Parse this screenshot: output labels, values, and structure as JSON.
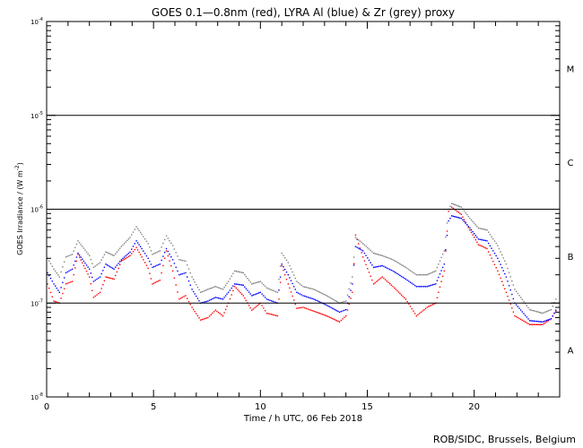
{
  "chart_data": {
    "type": "scatter",
    "title": "GOES 0.1—0.8nm (red), LYRA Al (blue) & Zr (grey) proxy",
    "xlabel": "Time / h UTC, 06 Feb 2018",
    "ylabel": "GOES Irradiance / (W m",
    "ylabel_sup": "-2",
    "ylabel_end": ")",
    "xlim": [
      0,
      24
    ],
    "ylim": [
      1e-08,
      0.0001
    ],
    "yscale": "log",
    "x_ticks": [
      {
        "v": 0,
        "label": "0"
      },
      {
        "v": 5,
        "label": "5"
      },
      {
        "v": 10,
        "label": "10"
      },
      {
        "v": 15,
        "label": "15"
      },
      {
        "v": 20,
        "label": "20"
      }
    ],
    "y_ticks": [
      {
        "exp": -8,
        "base": "10",
        "sup": "-8"
      },
      {
        "exp": -7,
        "base": "10",
        "sup": "-7"
      },
      {
        "exp": -6,
        "base": "10",
        "sup": "-6"
      },
      {
        "exp": -5,
        "base": "10",
        "sup": "-5"
      },
      {
        "exp": -4,
        "base": "10",
        "sup": "-4"
      }
    ],
    "reference_lines": [
      1e-07,
      1e-06,
      1e-05
    ],
    "class_labels": [
      {
        "label": "A",
        "exp": -7.5
      },
      {
        "label": "B",
        "exp": -6.5
      },
      {
        "label": "C",
        "exp": -5.5
      },
      {
        "label": "M",
        "exp": -4.5
      }
    ],
    "x": [
      0.04,
      0.34,
      0.6,
      0.9,
      1.2,
      1.47,
      2.0,
      2.2,
      2.5,
      2.77,
      3.15,
      3.5,
      3.9,
      4.2,
      4.45,
      4.75,
      4.95,
      5.3,
      5.6,
      5.9,
      6.2,
      6.5,
      6.8,
      7.2,
      7.55,
      7.9,
      8.25,
      8.5,
      8.8,
      9.2,
      9.6,
      10.0,
      10.3,
      10.8,
      11.0,
      11.3,
      11.7,
      12.0,
      12.5,
      13.1,
      13.7,
      14.0,
      14.3,
      14.45,
      14.8,
      15.3,
      15.7,
      16.2,
      16.8,
      17.3,
      17.8,
      18.2,
      18.6,
      18.8,
      18.95,
      19.4,
      19.8,
      20.2,
      20.6,
      21.1,
      21.5,
      21.9,
      22.6,
      23.2,
      23.6,
      23.9
    ],
    "series": [
      {
        "name": "GOES 0.1-0.8nm",
        "color": "#ff0000",
        "values": [
          1.6e-07,
          1.05e-07,
          1e-07,
          1.6e-07,
          1.7e-07,
          3.3e-07,
          1.9e-07,
          1.15e-07,
          1.3e-07,
          1.9e-07,
          1.8e-07,
          2.8e-07,
          3.2e-07,
          3.9e-07,
          3.1e-07,
          2.35e-07,
          1.6e-07,
          1.75e-07,
          3.6e-07,
          2.2e-07,
          1.1e-07,
          1.2e-07,
          9e-08,
          6.6e-08,
          7e-08,
          8.4e-08,
          7.3e-08,
          1e-07,
          1.5e-07,
          1.2e-07,
          8.4e-08,
          1e-07,
          7.8e-08,
          7.3e-08,
          2.5e-07,
          1.6e-07,
          8.8e-08,
          9e-08,
          8.2e-08,
          7.3e-08,
          6.3e-08,
          7.3e-08,
          1.3e-07,
          5.3e-07,
          3.1e-07,
          1.6e-07,
          1.9e-07,
          1.5e-07,
          1.1e-07,
          7.3e-08,
          9e-08,
          1e-07,
          2.2e-07,
          9.5e-07,
          1.05e-06,
          8.8e-07,
          6e-07,
          4.2e-07,
          3.8e-07,
          2.2e-07,
          1.3e-07,
          7.3e-08,
          5.9e-08,
          5.9e-08,
          6.8e-08,
          8.8e-08
        ]
      },
      {
        "name": "LYRA Al proxy",
        "color": "#0000ff",
        "values": [
          2.1e-07,
          1.6e-07,
          1.3e-07,
          2.1e-07,
          2.3e-07,
          3.4e-07,
          2.3e-07,
          1.7e-07,
          1.9e-07,
          2.6e-07,
          2.3e-07,
          2.9e-07,
          3.5e-07,
          4.6e-07,
          3.8e-07,
          3e-07,
          2.4e-07,
          2.6e-07,
          3.8e-07,
          2.9e-07,
          2e-07,
          2.1e-07,
          1.4e-07,
          1e-07,
          1.05e-07,
          1.15e-07,
          1.1e-07,
          1.3e-07,
          1.6e-07,
          1.55e-07,
          1.2e-07,
          1.3e-07,
          1.1e-07,
          1e-07,
          2.6e-07,
          2e-07,
          1.3e-07,
          1.2e-07,
          1.1e-07,
          9.5e-08,
          8e-08,
          8.5e-08,
          1.6e-07,
          4e-07,
          3.6e-07,
          2.4e-07,
          2.5e-07,
          2.2e-07,
          1.8e-07,
          1.5e-07,
          1.5e-07,
          1.6e-07,
          2.6e-07,
          7.5e-07,
          8.5e-07,
          8e-07,
          6.3e-07,
          4.8e-07,
          4.6e-07,
          3e-07,
          1.9e-07,
          1e-07,
          6.5e-08,
          6.3e-08,
          6.8e-08,
          9e-08
        ]
      },
      {
        "name": "LYRA Zr proxy",
        "color": "#808080",
        "values": [
          3e-07,
          2.3e-07,
          1.9e-07,
          3.1e-07,
          3.3e-07,
          4.6e-07,
          3.2e-07,
          2.4e-07,
          2.7e-07,
          3.5e-07,
          3.2e-07,
          4e-07,
          5e-07,
          6.5e-07,
          5.4e-07,
          4.3e-07,
          3.3e-07,
          3.6e-07,
          5.2e-07,
          4.1e-07,
          2.9e-07,
          2.8e-07,
          1.9e-07,
          1.3e-07,
          1.4e-07,
          1.5e-07,
          1.4e-07,
          1.7e-07,
          2.2e-07,
          2.1e-07,
          1.6e-07,
          1.7e-07,
          1.45e-07,
          1.3e-07,
          3.4e-07,
          2.7e-07,
          1.7e-07,
          1.5e-07,
          1.4e-07,
          1.2e-07,
          1e-07,
          1.05e-07,
          1.9e-07,
          5e-07,
          4.3e-07,
          3.4e-07,
          3.2e-07,
          2.9e-07,
          2.4e-07,
          2e-07,
          2e-07,
          2.2e-07,
          3.6e-07,
          1e-06,
          1.15e-06,
          1.05e-06,
          8e-07,
          6.3e-07,
          6e-07,
          4.1e-07,
          2.6e-07,
          1.4e-07,
          8.5e-08,
          7.8e-08,
          8.5e-08,
          1.2e-07
        ]
      }
    ]
  },
  "credit": "ROB/SIDC, Brussels, Belgium"
}
